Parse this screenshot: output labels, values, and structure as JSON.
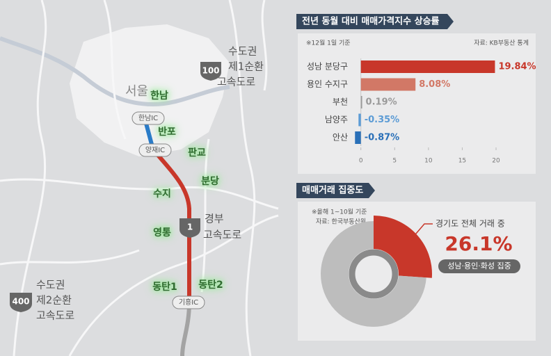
{
  "map": {
    "city": "서울",
    "areas": [
      "한남",
      "반포",
      "판교",
      "분당",
      "수지",
      "영통",
      "동탄1",
      "동탄2"
    ],
    "interchanges": [
      "한남IC",
      "양재IC",
      "기흥IC"
    ],
    "highways": [
      {
        "number": "100",
        "name_lines": [
          "수도권",
          "제1순환",
          "고속도로"
        ]
      },
      {
        "number": "1",
        "name_lines": [
          "경부",
          "고속도로"
        ]
      },
      {
        "number": "400",
        "name_lines": [
          "수도권",
          "제2순환",
          "고속도로"
        ]
      }
    ]
  },
  "chart_data": [
    {
      "type": "bar",
      "title": "전년 동월 대비 매매가격지수 상승률",
      "note": "※12월 1일 기준",
      "source": "자료: KB부동산 통계",
      "categories": [
        "성남 분당구",
        "용인 수지구",
        "부천",
        "남양주",
        "안산"
      ],
      "values": [
        19.84,
        8.08,
        0.19,
        -0.35,
        -0.87
      ],
      "value_labels": [
        "19.84%",
        "8.08%",
        "0.19%",
        "-0.35%",
        "-0.87%"
      ],
      "colors": [
        "#c8372a",
        "#d27866",
        "#9a9a9a",
        "#5b9bd5",
        "#2a70b8"
      ],
      "xlim": [
        -1,
        20
      ],
      "xticks": [
        0,
        5,
        10,
        15,
        20
      ]
    },
    {
      "type": "pie",
      "title": "매매거래 집중도",
      "note": "※올해 1~10월 기준",
      "source": "자료: 한국부동산원",
      "values": [
        26.1,
        73.9
      ],
      "value_labels": [
        "26.1%",
        null
      ],
      "colors": [
        "#c8372a",
        "#bdbdbd"
      ],
      "annotation": "경기도 전체 거래 중",
      "badge": "성남·용인·화성 집중"
    }
  ]
}
